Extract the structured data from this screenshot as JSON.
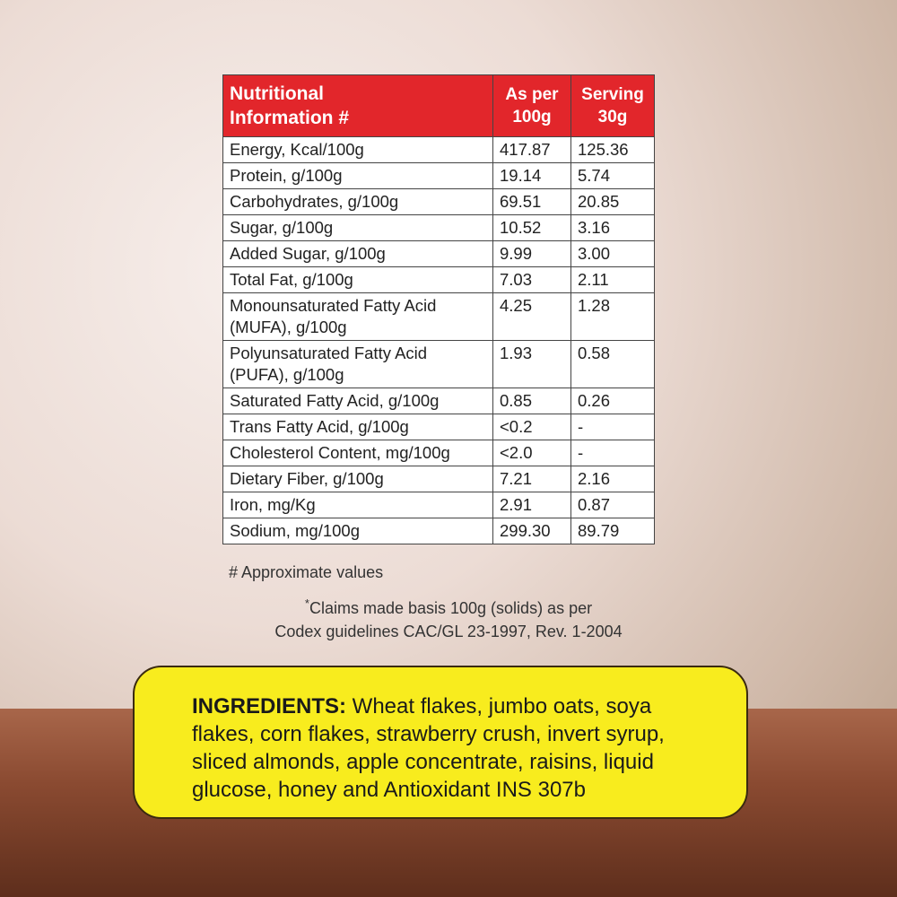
{
  "nutrition_table": {
    "header": [
      [
        "Nutritional",
        "Information #"
      ],
      [
        "As per",
        "100g"
      ],
      [
        "Serving",
        "30g"
      ]
    ],
    "rows": [
      [
        [
          "Energy, Kcal/100g"
        ],
        "417.87",
        "125.36"
      ],
      [
        [
          "Protein, g/100g"
        ],
        "19.14",
        "5.74"
      ],
      [
        [
          "Carbohydrates, g/100g"
        ],
        "69.51",
        "20.85"
      ],
      [
        [
          "Sugar, g/100g"
        ],
        "10.52",
        "3.16"
      ],
      [
        [
          "Added Sugar, g/100g"
        ],
        "9.99",
        "3.00"
      ],
      [
        [
          "Total Fat, g/100g"
        ],
        "7.03",
        "2.11"
      ],
      [
        [
          "Monounsaturated Fatty Acid",
          "(MUFA), g/100g"
        ],
        "4.25",
        "1.28"
      ],
      [
        [
          "Polyunsaturated Fatty Acid",
          "(PUFA), g/100g"
        ],
        "1.93",
        "0.58"
      ],
      [
        [
          "Saturated Fatty Acid, g/100g"
        ],
        "0.85",
        "0.26"
      ],
      [
        [
          "Trans Fatty Acid, g/100g"
        ],
        "<0.2",
        "-"
      ],
      [
        [
          "Cholesterol Content, mg/100g"
        ],
        "<2.0",
        "-"
      ],
      [
        [
          "Dietary Fiber, g/100g"
        ],
        "7.21",
        "2.16"
      ],
      [
        [
          "Iron, mg/Kg"
        ],
        "2.91",
        "0.87"
      ],
      [
        [
          "Sodium, mg/100g"
        ],
        "299.30",
        "89.79"
      ]
    ]
  },
  "notes": {
    "approx": "# Approximate values",
    "claims_marker": "*",
    "claims": [
      "Claims made basis 100g (solids) as per",
      "Codex guidelines CAC/GL 23-1997, Rev. 1-2004"
    ]
  },
  "ingredients": {
    "label": "INGREDIENTS:",
    "lines": [
      " Wheat flakes, jumbo oats, soya",
      "flakes, corn flakes, strawberry crush, invert syrup,",
      "sliced almonds, apple concentrate, raisins, liquid",
      "glucose, honey and Antioxidant INS 307b"
    ]
  }
}
